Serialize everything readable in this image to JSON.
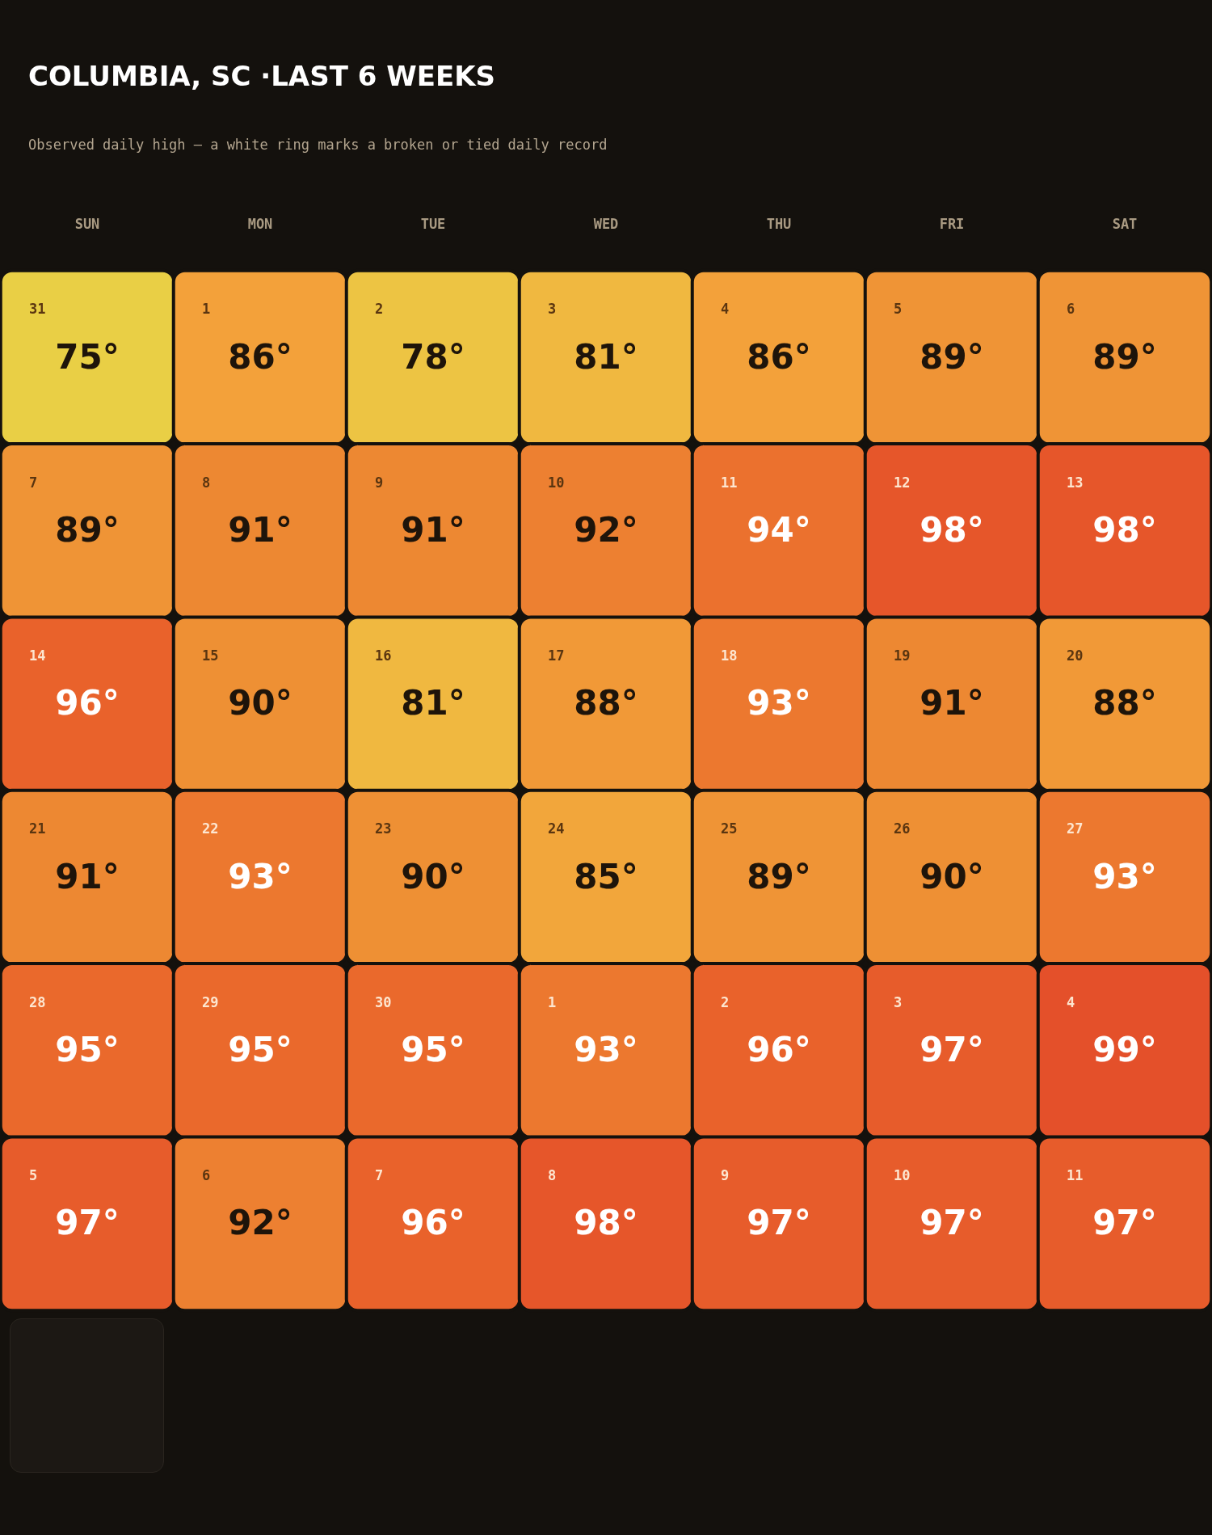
{
  "chart_data": {
    "type": "heatmap",
    "title": "COLUMBIA, SC ·LAST 6 WEEKS",
    "subtitle": "Observed daily high — a white ring marks a broken or tied daily record",
    "categories": [
      "SUN",
      "MON",
      "TUE",
      "WED",
      "THU",
      "FRI",
      "SAT"
    ],
    "y_categories": [
      null,
      null,
      null,
      null,
      null,
      null
    ],
    "cells": [
      [
        75,
        86,
        78,
        81,
        86,
        89,
        89
      ],
      [
        89,
        91,
        91,
        92,
        94,
        98,
        98
      ],
      [
        96,
        90,
        81,
        88,
        93,
        91,
        88
      ],
      [
        91,
        93,
        90,
        85,
        89,
        90,
        93
      ],
      [
        95,
        95,
        95,
        93,
        96,
        97,
        99
      ],
      [
        97,
        92,
        96,
        98,
        97,
        97,
        97
      ]
    ],
    "cell_labels": [
      [
        "75°",
        "86°",
        "78°",
        "81°",
        "86°",
        "89°",
        "89°"
      ],
      [
        "89°",
        "91°",
        "91°",
        "92°",
        "94°",
        "98°",
        "98°"
      ],
      [
        "96°",
        "90°",
        "81°",
        "88°",
        "93°",
        "91°",
        "88°"
      ],
      [
        "91°",
        "93°",
        "90°",
        "85°",
        "89°",
        "90°",
        "93°"
      ],
      [
        "95°",
        "95°",
        "95°",
        "93°",
        "96°",
        "97°",
        "99°"
      ],
      [
        "97°",
        "92°",
        "96°",
        "98°",
        "97°",
        "97°",
        "97°"
      ]
    ],
    "annotations": [
      "31",
      "1",
      "2",
      "3",
      "4",
      "5",
      "6",
      "7",
      "8",
      "9",
      "10",
      "11",
      "12",
      "13",
      "14",
      "15",
      "16",
      "17",
      "18",
      "19",
      "20",
      "21",
      "22",
      "23",
      "24",
      "25",
      "26",
      "27",
      "28",
      "29",
      "30",
      "1",
      "2",
      "3",
      "4",
      "5",
      "6",
      "7",
      "8",
      "9",
      "10",
      "11"
    ],
    "tick_labels": "x"
  }
}
